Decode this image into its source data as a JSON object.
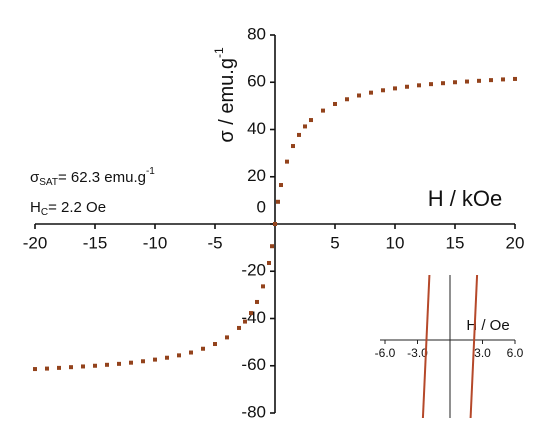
{
  "chart_data": {
    "type": "scatter",
    "ylabel": {
      "text": "σ / emu.g",
      "sup": "-1"
    },
    "xlabel": "H / kOe",
    "annotations": [
      {
        "text": "σ",
        "sub": "SAT",
        "rest": "= 62.3 emu.g",
        "sup": "-1"
      },
      {
        "text": "H",
        "sub": "C",
        "rest": "= 2.2 Oe"
      }
    ],
    "xlim": [
      -20,
      20
    ],
    "ylim": [
      -80,
      80
    ],
    "xticks": [
      -20,
      -15,
      -10,
      -5,
      5,
      10,
      15,
      20
    ],
    "yticks": [
      -80,
      -60,
      -40,
      -20,
      0,
      20,
      40,
      60,
      80
    ],
    "color": "#93431c",
    "x": [
      -20,
      -19,
      -18,
      -17,
      -16,
      -15,
      -14,
      -13,
      -12,
      -11,
      -10,
      -9,
      -8,
      -7,
      -6,
      -5,
      -4,
      -3,
      -2.5,
      -2,
      -1.5,
      -1,
      -0.5,
      -0.25,
      0,
      0.25,
      0.5,
      1,
      1.5,
      2,
      2.5,
      3,
      4,
      5,
      6,
      7,
      8,
      9,
      10,
      11,
      12,
      13,
      14,
      15,
      16,
      17,
      18,
      19,
      20
    ],
    "values": [
      -61.4,
      -61.2,
      -60.9,
      -60.6,
      -60.3,
      -60.0,
      -59.6,
      -59.2,
      -58.7,
      -58.1,
      -57.4,
      -56.6,
      -55.6,
      -54.4,
      -52.8,
      -50.8,
      -48.0,
      -44.0,
      -41.3,
      -37.7,
      -33.0,
      -26.4,
      -16.5,
      -9.4,
      0,
      9.4,
      16.5,
      26.4,
      33.0,
      37.7,
      41.3,
      44.0,
      48.0,
      50.8,
      52.8,
      54.4,
      55.6,
      56.6,
      57.4,
      58.1,
      58.7,
      59.2,
      59.6,
      60.0,
      60.3,
      60.6,
      60.9,
      61.2,
      61.4
    ],
    "inset": {
      "xlabel": "H / Oe",
      "xlim": [
        -6,
        6
      ],
      "ylim": [
        -1,
        1
      ],
      "xticks": [
        {
          "value": -6,
          "label": "-6.0"
        },
        {
          "value": -3,
          "label": "-3.0"
        },
        {
          "value": 3,
          "label": "3.0"
        },
        {
          "value": 6,
          "label": "6.0"
        }
      ],
      "color": "#b5482a",
      "series": [
        {
          "x": [
            -1.9,
            -2.5
          ],
          "values": [
            1,
            -1
          ]
        },
        {
          "x": [
            2.5,
            1.9
          ],
          "values": [
            1,
            -1
          ]
        }
      ]
    }
  }
}
